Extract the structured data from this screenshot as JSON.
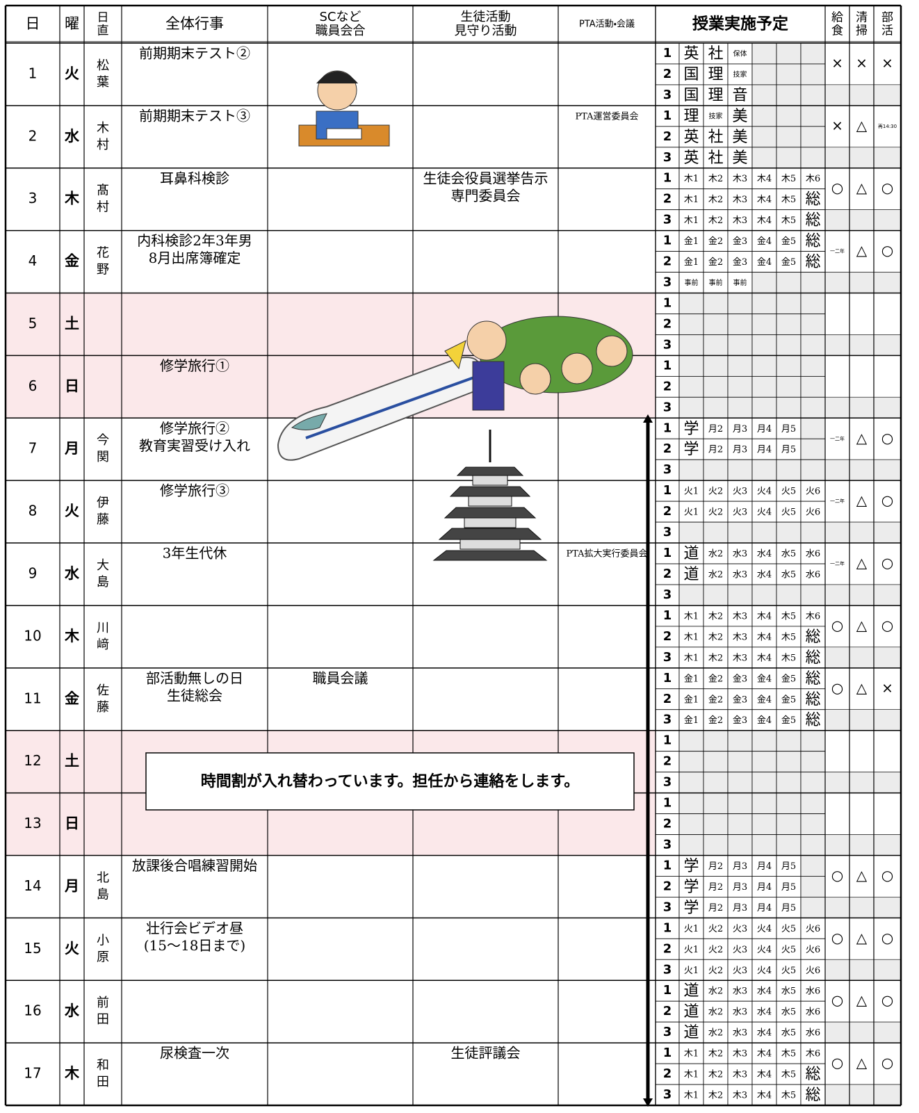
{
  "header": {
    "date": "日",
    "weekday": "曜",
    "duty": [
      "日",
      "直"
    ],
    "events": "全体行事",
    "sc": [
      "SCなど",
      "職員会合"
    ],
    "student": [
      "生徒活動",
      "見守り活動"
    ],
    "pta": "PTA活動・会議",
    "classes": "授業実施予定",
    "lunch": [
      "給",
      "食"
    ],
    "cleaning": [
      "清",
      "掃"
    ],
    "club": [
      "部",
      "活"
    ]
  },
  "period_labels": [
    "1",
    "2",
    "3"
  ],
  "days": [
    {
      "date": 1,
      "weekday": "火",
      "duty": [
        "松",
        "葉"
      ],
      "events": [
        "前期期末テスト②"
      ],
      "periods": [
        [
          "英",
          "社",
          "保体"
        ],
        [
          "国",
          "理",
          "技家"
        ],
        [
          "国",
          "理",
          "音"
        ]
      ],
      "lunch": "×",
      "cleaning": "×",
      "club": "×"
    },
    {
      "date": 2,
      "weekday": "水",
      "duty": [
        "木",
        "村"
      ],
      "events": [
        "前期期末テスト③"
      ],
      "pta": [
        "PTA運営委員会"
      ],
      "periods": [
        [
          "理",
          "技家",
          "美"
        ],
        [
          "英",
          "社",
          "美"
        ],
        [
          "英",
          "社",
          "美"
        ]
      ],
      "lunch": "×",
      "cleaning": "△",
      "club": "再14:30"
    },
    {
      "date": 3,
      "weekday": "木",
      "duty": [
        "髙",
        "村"
      ],
      "events": [
        "耳鼻科検診"
      ],
      "student": [
        "生徒会役員選挙告示",
        "専門委員会"
      ],
      "periods": [
        [
          "木1",
          "木2",
          "木3",
          "木4",
          "木5",
          "木6"
        ],
        [
          "木1",
          "木2",
          "木3",
          "木4",
          "木5",
          "総"
        ],
        [
          "木1",
          "木2",
          "木3",
          "木4",
          "木5",
          "総"
        ]
      ],
      "lunch": "○",
      "cleaning": "△",
      "club": "○"
    },
    {
      "date": 4,
      "weekday": "金",
      "duty": [
        "花",
        "野"
      ],
      "events": [
        "内科検診2年3年男",
        "8月出席簿確定"
      ],
      "periods": [
        [
          "金1",
          "金2",
          "金3",
          "金4",
          "金5",
          "総"
        ],
        [
          "金1",
          "金2",
          "金3",
          "金4",
          "金5",
          "総"
        ],
        [
          "事前",
          "事前",
          "事前"
        ]
      ],
      "lunch": "一二年",
      "cleaning": "△",
      "club": "○"
    },
    {
      "date": 5,
      "weekday": "土",
      "shaded": true
    },
    {
      "date": 6,
      "weekday": "日",
      "shaded": true,
      "events": [
        "修学旅行①"
      ]
    },
    {
      "date": 7,
      "weekday": "月",
      "duty": [
        "今",
        "関"
      ],
      "events": [
        "修学旅行②",
        "教育実習受け入れ"
      ],
      "periods": [
        [
          "学",
          "月2",
          "月3",
          "月4",
          "月5"
        ],
        [
          "学",
          "月2",
          "月3",
          "月4",
          "月5"
        ]
      ],
      "lunch": "一二年",
      "cleaning": "△",
      "club": "○"
    },
    {
      "date": 8,
      "weekday": "火",
      "duty": [
        "伊",
        "藤"
      ],
      "events": [
        "修学旅行③"
      ],
      "periods": [
        [
          "火1",
          "火2",
          "火3",
          "火4",
          "火5",
          "火6"
        ],
        [
          "火1",
          "火2",
          "火3",
          "火4",
          "火5",
          "火6"
        ]
      ],
      "lunch": "一二年",
      "cleaning": "△",
      "club": "○"
    },
    {
      "date": 9,
      "weekday": "水",
      "duty": [
        "大",
        "島"
      ],
      "events": [
        "3年生代休"
      ],
      "pta": [
        "PTA拡大実行委員会"
      ],
      "periods": [
        [
          "道",
          "水2",
          "水3",
          "水4",
          "水5",
          "水6"
        ],
        [
          "道",
          "水2",
          "水3",
          "水4",
          "水5",
          "水6"
        ]
      ],
      "lunch": "一二年",
      "cleaning": "△",
      "club": "○"
    },
    {
      "date": 10,
      "weekday": "木",
      "duty": [
        "川",
        "﨑"
      ],
      "periods": [
        [
          "木1",
          "木2",
          "木3",
          "木4",
          "木5",
          "木6"
        ],
        [
          "木1",
          "木2",
          "木3",
          "木4",
          "木5",
          "総"
        ],
        [
          "木1",
          "木2",
          "木3",
          "木4",
          "木5",
          "総"
        ]
      ],
      "lunch": "○",
      "cleaning": "△",
      "club": "○"
    },
    {
      "date": 11,
      "weekday": "金",
      "duty": [
        "佐",
        "藤"
      ],
      "events": [
        "部活動無しの日",
        "生徒総会"
      ],
      "sc": [
        "職員会議"
      ],
      "periods": [
        [
          "金1",
          "金2",
          "金3",
          "金4",
          "金5",
          "総"
        ],
        [
          "金1",
          "金2",
          "金3",
          "金4",
          "金5",
          "総"
        ],
        [
          "金1",
          "金2",
          "金3",
          "金4",
          "金5",
          "総"
        ]
      ],
      "lunch": "○",
      "cleaning": "△",
      "club": "×"
    },
    {
      "date": 12,
      "weekday": "土",
      "shaded": true
    },
    {
      "date": 13,
      "weekday": "日",
      "shaded": true
    },
    {
      "date": 14,
      "weekday": "月",
      "duty": [
        "北",
        "島"
      ],
      "events": [
        "放課後合唱練習開始"
      ],
      "periods": [
        [
          "学",
          "月2",
          "月3",
          "月4",
          "月5"
        ],
        [
          "学",
          "月2",
          "月3",
          "月4",
          "月5"
        ],
        [
          "学",
          "月2",
          "月3",
          "月4",
          "月5"
        ]
      ],
      "lunch": "○",
      "cleaning": "△",
      "club": "○"
    },
    {
      "date": 15,
      "weekday": "火",
      "duty": [
        "小",
        "原"
      ],
      "events": [
        "壮行会ビデオ昼",
        "(15～18日まで)"
      ],
      "periods": [
        [
          "火1",
          "火2",
          "火3",
          "火4",
          "火5",
          "火6"
        ],
        [
          "火1",
          "火2",
          "火3",
          "火4",
          "火5",
          "火6"
        ],
        [
          "火1",
          "火2",
          "火3",
          "火4",
          "火5",
          "火6"
        ]
      ],
      "lunch": "○",
      "cleaning": "△",
      "club": "○"
    },
    {
      "date": 16,
      "weekday": "水",
      "duty": [
        "前",
        "田"
      ],
      "periods": [
        [
          "道",
          "水2",
          "水3",
          "水4",
          "水5",
          "水6"
        ],
        [
          "道",
          "水2",
          "水3",
          "水4",
          "水5",
          "水6"
        ],
        [
          "道",
          "水2",
          "水3",
          "水4",
          "水5",
          "水6"
        ]
      ],
      "lunch": "○",
      "cleaning": "△",
      "club": "○"
    },
    {
      "date": 17,
      "weekday": "木",
      "duty": [
        "和",
        "田"
      ],
      "events": [
        "尿検査一次"
      ],
      "student": [
        "生徒評議会"
      ],
      "periods": [
        [
          "木1",
          "木2",
          "木3",
          "木4",
          "木5",
          "木6"
        ],
        [
          "木1",
          "木2",
          "木3",
          "木4",
          "木5",
          "総"
        ],
        [
          "木1",
          "木2",
          "木3",
          "木4",
          "木5",
          "総"
        ]
      ],
      "lunch": "○",
      "cleaning": "△",
      "club": "○"
    }
  ],
  "notice": "時間割が入れ替わっています。担任から連絡をします。"
}
